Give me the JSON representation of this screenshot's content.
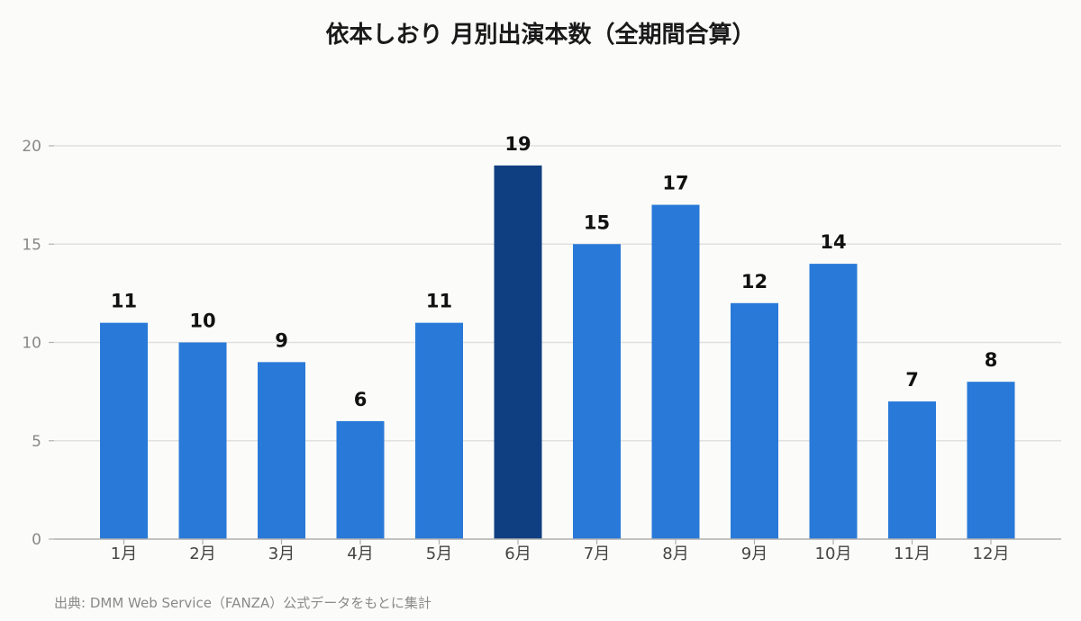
{
  "title": "依本しおり 月別出演本数（全期間合算）",
  "source": "出典: DMM Web Service（FANZA）公式データをもとに集計",
  "colors": {
    "bar": "#2979d8",
    "highlight": "#0f3f80",
    "grid": "#e0e0e0",
    "axis": "#b0b0b0",
    "tick_text": "#888888",
    "category_text": "#444444",
    "value_text": "#111111"
  },
  "chart_data": {
    "type": "bar",
    "categories": [
      "1月",
      "2月",
      "3月",
      "4月",
      "5月",
      "6月",
      "7月",
      "8月",
      "9月",
      "10月",
      "11月",
      "12月"
    ],
    "values": [
      11,
      10,
      9,
      6,
      11,
      19,
      15,
      17,
      12,
      14,
      7,
      8
    ],
    "highlight_index": 5,
    "ylim": [
      0,
      20
    ],
    "yticks": [
      0,
      5,
      10,
      15,
      20
    ],
    "xlabel": "",
    "ylabel": "",
    "grid": true,
    "data_labels": true
  }
}
